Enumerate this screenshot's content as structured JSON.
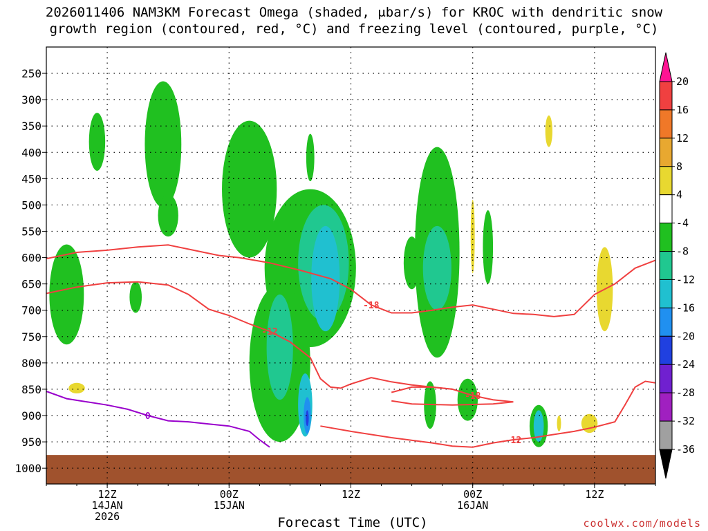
{
  "title_line1": "2026011406 NAM3KM Forecast Omega (shaded, μbar/s) for KROC with dendritic snow",
  "title_line2": "growth region (contoured, red, °C) and freezing level (contoured, purple, °C)",
  "watermark": "coolwx.com/models",
  "chart_data": {
    "type": "contour",
    "title": "2026011406 NAM3KM Forecast Omega (shaded, μbar/s) for KROC with dendritic snow growth region (contoured, red, °C) and freezing level (contoured, purple, °C)",
    "xlabel": "Forecast Time (UTC)",
    "ylabel": "",
    "x_range_hours": [
      0,
      60
    ],
    "y_axis": {
      "scale": "pressure",
      "reversed": true,
      "range_hPa": [
        200,
        1030
      ],
      "ticks": [
        250,
        300,
        350,
        400,
        450,
        500,
        550,
        600,
        650,
        700,
        750,
        800,
        850,
        900,
        950,
        1000
      ]
    },
    "x_ticks": [
      {
        "hour": 6,
        "lines": [
          "12Z",
          "14JAN",
          "2026"
        ]
      },
      {
        "hour": 18,
        "lines": [
          "00Z",
          "15JAN"
        ]
      },
      {
        "hour": 30,
        "lines": [
          "12Z"
        ]
      },
      {
        "hour": 42,
        "lines": [
          "00Z",
          "16JAN"
        ]
      },
      {
        "hour": 54,
        "lines": [
          "12Z"
        ]
      }
    ],
    "grid": true,
    "colorbar": {
      "placement": "right",
      "levels": [
        20,
        16,
        12,
        8,
        4,
        -4,
        -8,
        -12,
        -16,
        -20,
        -24,
        -28,
        -32,
        -36
      ],
      "colors": [
        "#ff1493",
        "#f04040",
        "#f07828",
        "#e8a830",
        "#e8d830",
        "#ffffff",
        "#20c020",
        "#20c890",
        "#20c0d0",
        "#2090f0",
        "#2040e0",
        "#7020d0",
        "#a020c0",
        "#a0a0a0",
        "#000000"
      ]
    },
    "contours": [
      {
        "kind": "dgz",
        "color": "#f04040",
        "label": "-18",
        "points": [
          [
            0,
            602
          ],
          [
            3,
            590
          ],
          [
            6,
            586
          ],
          [
            9,
            580
          ],
          [
            12,
            576
          ],
          [
            14,
            584
          ],
          [
            17,
            596
          ],
          [
            19,
            600
          ],
          [
            22,
            610
          ],
          [
            25,
            624
          ],
          [
            28,
            640
          ],
          [
            30,
            660
          ],
          [
            32,
            690
          ],
          [
            34,
            705
          ],
          [
            36,
            705
          ],
          [
            38,
            700
          ],
          [
            40,
            694
          ],
          [
            42,
            690
          ],
          [
            44,
            698
          ],
          [
            46,
            706
          ],
          [
            48,
            708
          ],
          [
            50,
            712
          ],
          [
            52,
            708
          ],
          [
            54,
            670
          ],
          [
            56,
            650
          ],
          [
            58,
            620
          ],
          [
            60,
            605
          ]
        ]
      },
      {
        "kind": "dgz",
        "color": "#f04040",
        "label": "-12",
        "points": [
          [
            0,
            668
          ],
          [
            3,
            656
          ],
          [
            6,
            648
          ],
          [
            9,
            646
          ],
          [
            12,
            652
          ],
          [
            14,
            670
          ],
          [
            16,
            698
          ],
          [
            18,
            710
          ],
          [
            20,
            726
          ],
          [
            22,
            740
          ],
          [
            24,
            760
          ],
          [
            26,
            790
          ],
          [
            27,
            830
          ],
          [
            28,
            846
          ],
          [
            29,
            848
          ],
          [
            30,
            840
          ],
          [
            32,
            828
          ],
          [
            34,
            836
          ],
          [
            36,
            842
          ],
          [
            38,
            846
          ],
          [
            40,
            850
          ]
        ]
      },
      {
        "kind": "dgz",
        "color": "#f04040",
        "label": "-18",
        "points": [
          [
            34,
            856
          ],
          [
            36,
            846
          ],
          [
            38,
            846
          ],
          [
            40,
            850
          ],
          [
            42,
            862
          ],
          [
            44,
            870
          ],
          [
            46,
            874
          ],
          [
            44,
            878
          ],
          [
            40,
            880
          ],
          [
            36,
            878
          ],
          [
            34,
            872
          ]
        ]
      },
      {
        "kind": "dgz",
        "color": "#f04040",
        "label": "-12",
        "points": [
          [
            27,
            920
          ],
          [
            30,
            930
          ],
          [
            34,
            942
          ],
          [
            38,
            952
          ],
          [
            40,
            958
          ],
          [
            42,
            960
          ],
          [
            44,
            952
          ],
          [
            46,
            946
          ],
          [
            48,
            942
          ],
          [
            50,
            936
          ],
          [
            52,
            930
          ],
          [
            54,
            922
          ],
          [
            56,
            912
          ],
          [
            57,
            880
          ],
          [
            58,
            846
          ],
          [
            59,
            835
          ],
          [
            60,
            838
          ]
        ]
      },
      {
        "kind": "freezing",
        "color": "#9900cc",
        "label": "0",
        "points": [
          [
            0,
            854
          ],
          [
            2,
            868
          ],
          [
            4,
            874
          ],
          [
            6,
            880
          ],
          [
            8,
            888
          ],
          [
            10,
            900
          ],
          [
            12,
            910
          ],
          [
            14,
            912
          ],
          [
            16,
            916
          ],
          [
            18,
            920
          ],
          [
            20,
            930
          ],
          [
            21,
            946
          ],
          [
            22,
            960
          ]
        ]
      }
    ],
    "shaded_regions": [
      {
        "omega": -8,
        "color": "#20c020",
        "center": [
          11.5,
          385
        ],
        "rx": 1.8,
        "ry": 120
      },
      {
        "omega": -8,
        "color": "#20c020",
        "center": [
          5.0,
          380
        ],
        "rx": 0.8,
        "ry": 55
      },
      {
        "omega": -8,
        "color": "#20c020",
        "center": [
          2.0,
          670
        ],
        "rx": 1.7,
        "ry": 95
      },
      {
        "omega": -8,
        "color": "#20c020",
        "center": [
          8.8,
          675
        ],
        "rx": 0.6,
        "ry": 30
      },
      {
        "omega": -8,
        "color": "#20c020",
        "center": [
          12.0,
          520
        ],
        "rx": 1.0,
        "ry": 40
      },
      {
        "omega": -8,
        "color": "#20c020",
        "center": [
          20.0,
          470
        ],
        "rx": 2.7,
        "ry": 130
      },
      {
        "omega": -8,
        "color": "#20c020",
        "center": [
          26.0,
          620
        ],
        "rx": 4.5,
        "ry": 150
      },
      {
        "omega": -8,
        "color": "#20c020",
        "center": [
          23.0,
          800
        ],
        "rx": 3.0,
        "ry": 150
      },
      {
        "omega": -8,
        "color": "#20c020",
        "center": [
          26.0,
          410
        ],
        "rx": 0.4,
        "ry": 45
      },
      {
        "omega": -8,
        "color": "#20c020",
        "center": [
          38.5,
          590
        ],
        "rx": 2.2,
        "ry": 200
      },
      {
        "omega": -8,
        "color": "#20c020",
        "center": [
          36.0,
          610
        ],
        "rx": 0.8,
        "ry": 50
      },
      {
        "omega": -8,
        "color": "#20c020",
        "center": [
          41.5,
          870
        ],
        "rx": 1.0,
        "ry": 40
      },
      {
        "omega": -8,
        "color": "#20c020",
        "center": [
          48.5,
          920
        ],
        "rx": 0.9,
        "ry": 40
      },
      {
        "omega": -8,
        "color": "#20c020",
        "center": [
          37.8,
          880
        ],
        "rx": 0.6,
        "ry": 45
      },
      {
        "omega": -8,
        "color": "#20c020",
        "center": [
          43.5,
          580
        ],
        "rx": 0.5,
        "ry": 70
      },
      {
        "omega": -12,
        "color": "#20c890",
        "center": [
          27.3,
          610
        ],
        "rx": 2.5,
        "ry": 110
      },
      {
        "omega": -12,
        "color": "#20c890",
        "center": [
          38.5,
          620
        ],
        "rx": 1.4,
        "ry": 80
      },
      {
        "omega": -12,
        "color": "#20c890",
        "center": [
          23.0,
          770
        ],
        "rx": 1.3,
        "ry": 100
      },
      {
        "omega": -16,
        "color": "#20c0d0",
        "center": [
          27.5,
          640
        ],
        "rx": 1.4,
        "ry": 100
      },
      {
        "omega": -16,
        "color": "#20c0d0",
        "center": [
          25.5,
          880
        ],
        "rx": 0.7,
        "ry": 60
      },
      {
        "omega": -16,
        "color": "#20c0d0",
        "center": [
          48.5,
          920
        ],
        "rx": 0.5,
        "ry": 30
      },
      {
        "omega": -20,
        "color": "#2090f0",
        "center": [
          25.7,
          900
        ],
        "rx": 0.35,
        "ry": 35
      },
      {
        "omega": -24,
        "color": "#2040e0",
        "center": [
          25.7,
          905
        ],
        "rx": 0.15,
        "ry": 15
      },
      {
        "omega": 4,
        "color": "#e8d830",
        "center": [
          55.0,
          660
        ],
        "rx": 0.8,
        "ry": 80
      },
      {
        "omega": 4,
        "color": "#e8d830",
        "center": [
          49.5,
          360
        ],
        "rx": 0.35,
        "ry": 30
      },
      {
        "omega": 4,
        "color": "#e8d830",
        "center": [
          3.0,
          848
        ],
        "rx": 0.8,
        "ry": 10
      },
      {
        "omega": 4,
        "color": "#e8d830",
        "center": [
          53.5,
          915
        ],
        "rx": 0.8,
        "ry": 18
      },
      {
        "omega": 4,
        "color": "#e8d830",
        "center": [
          50.5,
          915
        ],
        "rx": 0.2,
        "ry": 15
      },
      {
        "omega": 4,
        "color": "#e8d830",
        "center": [
          42.0,
          560
        ],
        "rx": 0.2,
        "ry": 70
      }
    ],
    "ground": {
      "color": "#a0522d",
      "from_hPa": 975
    }
  }
}
